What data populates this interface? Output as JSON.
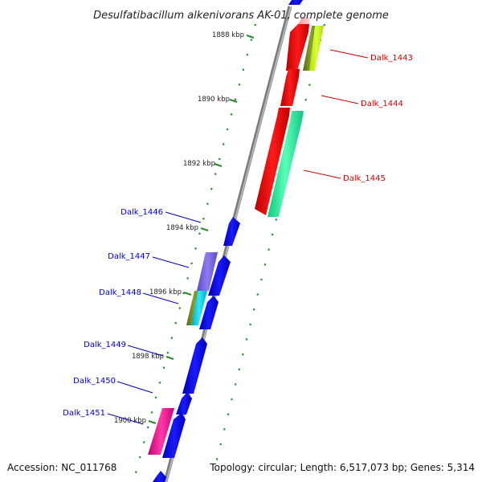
{
  "title": "Desulfatibacillum alkenivorans AK-01, complete genome",
  "footer": {
    "accession": "Accession: NC_011768",
    "summary": "Topology: circular; Length: 6,517,073 bp; Genes: 5,314"
  },
  "colors": {
    "backbone": "#8a8a8a",
    "dots": "#2a8a2a",
    "forward_label": "#cc0000",
    "reverse_label": "#0000cc"
  },
  "ticks": [
    "1888 kbp",
    "1890 kbp",
    "1892 kbp",
    "1894 kbp",
    "1896 kbp",
    "1898 kbp",
    "1900 kbp"
  ],
  "genes": [
    {
      "id": "Dalk_1443",
      "label": "Dalk_1443",
      "strand": "forward"
    },
    {
      "id": "Dalk_1444",
      "label": "Dalk_1444",
      "strand": "forward"
    },
    {
      "id": "Dalk_1445",
      "label": "Dalk_1445",
      "strand": "forward"
    },
    {
      "id": "Dalk_1446",
      "label": "Dalk_1446",
      "strand": "reverse"
    },
    {
      "id": "Dalk_1447",
      "label": "Dalk_1447",
      "strand": "reverse"
    },
    {
      "id": "Dalk_1448",
      "label": "Dalk_1448",
      "strand": "reverse"
    },
    {
      "id": "Dalk_1449",
      "label": "Dalk_1449",
      "strand": "reverse"
    },
    {
      "id": "Dalk_1450",
      "label": "Dalk_1450",
      "strand": "reverse"
    },
    {
      "id": "Dalk_1451",
      "label": "Dalk_1451",
      "strand": "reverse"
    }
  ]
}
